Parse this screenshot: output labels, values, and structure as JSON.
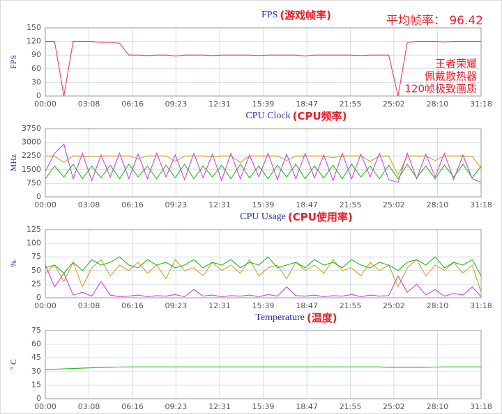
{
  "chart_data": [
    {
      "type": "line",
      "title": "FPS",
      "annotation": "(游戏帧率)",
      "ylabel": "FPS",
      "annotations": [
        "平均帧率： 96.42",
        "王者荣耀",
        "佩戴散热器",
        "120帧极致画质"
      ],
      "x": [
        0,
        40,
        80,
        120,
        160,
        200,
        240,
        280,
        320,
        360,
        400,
        440,
        480,
        520,
        560,
        600,
        640,
        680,
        720,
        760,
        800,
        840,
        880,
        920,
        960,
        1000,
        1040,
        1080,
        1120,
        1160,
        1200,
        1240,
        1280,
        1320,
        1360,
        1400,
        1440,
        1480,
        1520,
        1560,
        1600,
        1640,
        1680,
        1720,
        1760,
        1800,
        1840,
        1878
      ],
      "series": [
        {
          "color": "#f04050",
          "values": [
            120,
            120,
            0,
            120,
            120,
            120,
            118,
            118,
            116,
            90,
            90,
            89,
            90,
            90,
            88,
            90,
            90,
            90,
            89,
            90,
            90,
            90,
            90,
            89,
            90,
            90,
            90,
            90,
            88,
            90,
            90,
            90,
            90,
            90,
            89,
            90,
            90,
            90,
            0,
            118,
            120,
            120,
            120,
            119,
            120,
            120,
            120,
            120
          ]
        }
      ],
      "xlim": [
        0,
        1878
      ],
      "xticks": [
        {
          "value": 0,
          "label": "00:00"
        },
        {
          "value": 188,
          "label": "03:08"
        },
        {
          "value": 376,
          "label": "06:16"
        },
        {
          "value": 563,
          "label": "09:23"
        },
        {
          "value": 751,
          "label": "12:31"
        },
        {
          "value": 939,
          "label": "15:39"
        },
        {
          "value": 1127,
          "label": "18:47"
        },
        {
          "value": 1315,
          "label": "21:55"
        },
        {
          "value": 1502,
          "label": "25:02"
        },
        {
          "value": 1690,
          "label": "28:10"
        },
        {
          "value": 1878,
          "label": "31:18"
        }
      ],
      "ylim": [
        0,
        150
      ],
      "yticks": [
        0,
        30,
        60,
        90,
        120,
        150
      ],
      "grid": true
    },
    {
      "type": "line",
      "title": "CPU Clock",
      "annotation": "(CPU频率)",
      "ylabel": "MHz",
      "x": [
        0,
        40,
        80,
        120,
        160,
        200,
        240,
        280,
        320,
        360,
        400,
        440,
        480,
        520,
        560,
        600,
        640,
        680,
        720,
        760,
        800,
        840,
        880,
        920,
        960,
        1000,
        1040,
        1080,
        1120,
        1160,
        1200,
        1240,
        1280,
        1320,
        1360,
        1400,
        1440,
        1480,
        1520,
        1560,
        1600,
        1640,
        1680,
        1720,
        1760,
        1800,
        1840,
        1878
      ],
      "series": [
        {
          "color": "#d6a020",
          "values": [
            2250,
            2250,
            1900,
            2250,
            2250,
            2200,
            2250,
            2250,
            2250,
            2250,
            2100,
            2250,
            2250,
            2250,
            1950,
            2250,
            2250,
            2250,
            2200,
            2250,
            2250,
            1900,
            2250,
            2250,
            2250,
            2250,
            2000,
            2250,
            2250,
            2250,
            2250,
            2150,
            2250,
            2250,
            2250,
            1950,
            2250,
            2250,
            1200,
            2250,
            2250,
            2250,
            2000,
            2250,
            2250,
            2250,
            2200,
            1600
          ]
        },
        {
          "color": "#cc44e0",
          "values": [
            1400,
            2400,
            2900,
            1000,
            2400,
            900,
            2300,
            1100,
            2400,
            1000,
            2350,
            1000,
            2400,
            1100,
            2300,
            950,
            2400,
            1050,
            2350,
            900,
            2400,
            1000,
            2300,
            1100,
            2400,
            950,
            2350,
            1000,
            2400,
            1050,
            2300,
            900,
            2400,
            1000,
            2350,
            1100,
            2400,
            950,
            800,
            2400,
            1000,
            2350,
            1100,
            2400,
            950,
            2300,
            1000,
            800
          ]
        },
        {
          "color": "#22bb22",
          "values": [
            1000,
            1700,
            1100,
            1800,
            1000,
            1700,
            1050,
            1750,
            1000,
            1800,
            1100,
            1700,
            1000,
            1750,
            1050,
            1800,
            1000,
            1700,
            1100,
            1750,
            1000,
            1800,
            1050,
            1700,
            1000,
            1750,
            1100,
            1800,
            1000,
            1700,
            1050,
            1750,
            1000,
            1800,
            1100,
            1700,
            1000,
            1750,
            1000,
            1800,
            1050,
            1700,
            1000,
            1750,
            1100,
            1800,
            1050,
            1700
          ]
        }
      ],
      "xlim": [
        0,
        1878
      ],
      "xticks": [
        {
          "value": 0,
          "label": "00:00"
        },
        {
          "value": 188,
          "label": "03:08"
        },
        {
          "value": 376,
          "label": "06:16"
        },
        {
          "value": 563,
          "label": "09:23"
        },
        {
          "value": 751,
          "label": "12:31"
        },
        {
          "value": 939,
          "label": "15:39"
        },
        {
          "value": 1127,
          "label": "18:47"
        },
        {
          "value": 1315,
          "label": "21:55"
        },
        {
          "value": 1502,
          "label": "25:02"
        },
        {
          "value": 1690,
          "label": "28:10"
        },
        {
          "value": 1878,
          "label": "31:18"
        }
      ],
      "ylim": [
        0,
        3750
      ],
      "yticks": [
        0,
        750,
        1500,
        2250,
        3000,
        3750
      ],
      "grid": true
    },
    {
      "type": "line",
      "title": "CPU Usage",
      "annotation": "(CPU使用率)",
      "ylabel": "%",
      "x": [
        0,
        40,
        80,
        120,
        160,
        200,
        240,
        280,
        320,
        360,
        400,
        440,
        480,
        520,
        560,
        600,
        640,
        680,
        720,
        760,
        800,
        840,
        880,
        920,
        960,
        1000,
        1040,
        1080,
        1120,
        1160,
        1200,
        1240,
        1280,
        1320,
        1360,
        1400,
        1440,
        1480,
        1520,
        1560,
        1600,
        1640,
        1680,
        1720,
        1760,
        1800,
        1840,
        1878
      ],
      "series": [
        {
          "color": "#d6a020",
          "values": [
            45,
            60,
            30,
            65,
            20,
            55,
            70,
            40,
            60,
            50,
            65,
            45,
            60,
            35,
            70,
            50,
            55,
            40,
            65,
            50,
            60,
            45,
            70,
            40,
            55,
            60,
            35,
            65,
            50,
            60,
            45,
            70,
            50,
            55,
            40,
            65,
            50,
            60,
            20,
            55,
            70,
            40,
            60,
            50,
            65,
            45,
            60,
            10
          ]
        },
        {
          "color": "#22bb22",
          "values": [
            55,
            60,
            45,
            65,
            50,
            70,
            60,
            65,
            75,
            60,
            55,
            70,
            60,
            65,
            55,
            60,
            70,
            55,
            65,
            60,
            70,
            55,
            65,
            60,
            75,
            55,
            60,
            65,
            55,
            70,
            60,
            65,
            55,
            70,
            60,
            55,
            65,
            60,
            50,
            65,
            70,
            60,
            75,
            55,
            65,
            60,
            70,
            40
          ]
        },
        {
          "color": "#cc44e0",
          "values": [
            60,
            20,
            45,
            5,
            10,
            3,
            30,
            5,
            2,
            3,
            5,
            2,
            4,
            3,
            6,
            2,
            15,
            3,
            5,
            2,
            4,
            3,
            5,
            2,
            6,
            3,
            20,
            4,
            3,
            5,
            2,
            4,
            3,
            6,
            2,
            5,
            3,
            4,
            40,
            10,
            25,
            5,
            15,
            3,
            8,
            5,
            20,
            2
          ]
        }
      ],
      "xlim": [
        0,
        1878
      ],
      "xticks": [
        {
          "value": 0,
          "label": "00:00"
        },
        {
          "value": 188,
          "label": "03:08"
        },
        {
          "value": 376,
          "label": "06:16"
        },
        {
          "value": 563,
          "label": "09:23"
        },
        {
          "value": 751,
          "label": "12:31"
        },
        {
          "value": 939,
          "label": "15:39"
        },
        {
          "value": 1127,
          "label": "18:47"
        },
        {
          "value": 1315,
          "label": "21:55"
        },
        {
          "value": 1502,
          "label": "25:02"
        },
        {
          "value": 1690,
          "label": "28:10"
        },
        {
          "value": 1878,
          "label": "31:18"
        }
      ],
      "ylim": [
        0,
        125
      ],
      "yticks": [
        0,
        25,
        50,
        75,
        100,
        125
      ],
      "grid": true
    },
    {
      "type": "line",
      "title": "Temperature",
      "annotation": "(温度)",
      "ylabel": "° C",
      "x": [
        0,
        40,
        80,
        120,
        160,
        200,
        240,
        280,
        320,
        360,
        400,
        440,
        480,
        520,
        560,
        600,
        640,
        680,
        720,
        760,
        800,
        840,
        880,
        920,
        960,
        1000,
        1040,
        1080,
        1120,
        1160,
        1200,
        1240,
        1280,
        1320,
        1360,
        1400,
        1440,
        1480,
        1520,
        1560,
        1600,
        1640,
        1680,
        1720,
        1760,
        1800,
        1840,
        1878
      ],
      "series": [
        {
          "color": "#22bb22",
          "values": [
            32,
            32.4,
            32.8,
            33.2,
            33.6,
            34,
            34.3,
            34.6,
            34.8,
            35,
            35,
            35,
            35,
            35,
            35,
            35,
            35,
            35,
            35,
            35,
            35,
            35,
            35,
            35,
            35,
            35,
            35,
            35,
            35,
            35,
            35,
            35,
            35,
            35,
            35,
            35,
            35,
            34.5,
            34.5,
            34.5,
            34.5,
            34.5,
            34.8,
            35,
            35,
            35,
            35,
            35
          ]
        }
      ],
      "xlim": [
        0,
        1878
      ],
      "xticks": [
        {
          "value": 0,
          "label": "00:00"
        },
        {
          "value": 188,
          "label": "03:08"
        },
        {
          "value": 376,
          "label": "06:16"
        },
        {
          "value": 563,
          "label": "09:23"
        },
        {
          "value": 751,
          "label": "12:31"
        },
        {
          "value": 939,
          "label": "15:39"
        },
        {
          "value": 1127,
          "label": "18:47"
        },
        {
          "value": 1315,
          "label": "21:55"
        },
        {
          "value": 1502,
          "label": "25:02"
        },
        {
          "value": 1690,
          "label": "28:10"
        },
        {
          "value": 1878,
          "label": "31:18"
        }
      ],
      "ylim": [
        0,
        75
      ],
      "yticks": [
        0,
        15,
        30,
        45,
        60,
        75
      ],
      "grid": true
    }
  ]
}
